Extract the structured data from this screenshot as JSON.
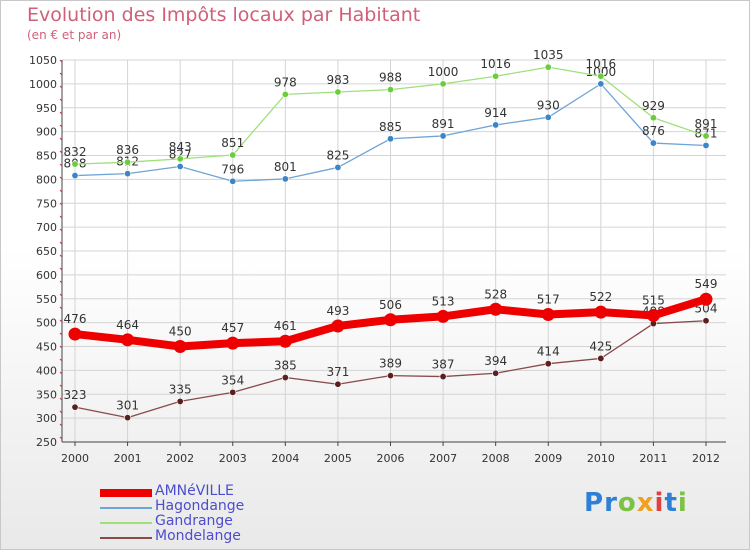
{
  "title": "Evolution des Impôts locaux par Habitant",
  "subtitle": "(en € et par an)",
  "logo_text": "Proxiti",
  "colors": {
    "title": "#d0607a",
    "legend_text": "#4d4dcf",
    "axis": "#444444",
    "grid": "#d4d4d4"
  },
  "chart_data": {
    "type": "line",
    "x": [
      "2000",
      "2001",
      "2002",
      "2003",
      "2004",
      "2005",
      "2006",
      "2007",
      "2008",
      "2009",
      "2010",
      "2011",
      "2012"
    ],
    "ylim": [
      250,
      1050
    ],
    "yticks": [
      250,
      300,
      350,
      400,
      450,
      500,
      550,
      600,
      650,
      700,
      750,
      800,
      850,
      900,
      950,
      1000,
      1050
    ],
    "grid": true,
    "legend_position": "bottom-left",
    "series": [
      {
        "name": "AMNéVILLE",
        "color": "#ee0000",
        "values": [
          476,
          464,
          450,
          457,
          461,
          493,
          506,
          513,
          528,
          517,
          522,
          515,
          549
        ]
      },
      {
        "name": "Hagondange",
        "color": "#6fa4d6",
        "marker": "#3c86c8",
        "values": [
          808,
          812,
          827,
          796,
          801,
          825,
          885,
          891,
          914,
          930,
          1000,
          876,
          871
        ]
      },
      {
        "name": "Gandrange",
        "color": "#9fe07a",
        "marker": "#6ccc3c",
        "values": [
          832,
          836,
          843,
          851,
          978,
          983,
          988,
          1000,
          1016,
          1035,
          1016,
          929,
          891
        ]
      },
      {
        "name": "Mondelange",
        "color": "#8a4a4a",
        "marker": "#5a1f1f",
        "values": [
          323,
          301,
          335,
          354,
          385,
          371,
          389,
          387,
          394,
          414,
          425,
          498,
          504
        ]
      }
    ]
  }
}
